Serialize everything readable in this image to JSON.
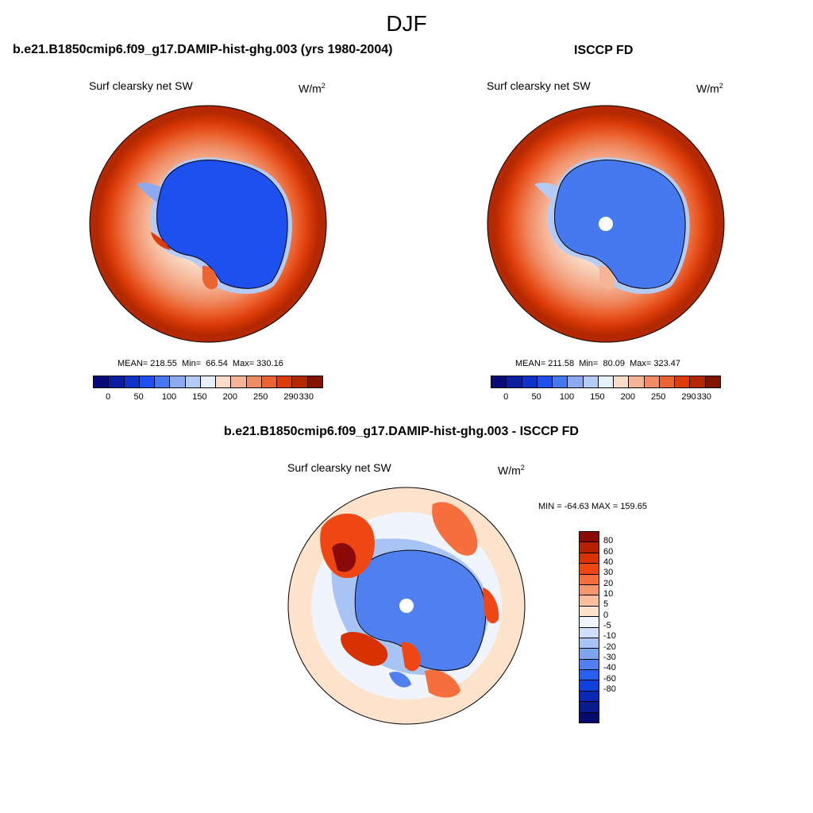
{
  "page": {
    "title": "DJF"
  },
  "panels": {
    "model": {
      "title": "b.e21.B1850cmip6.f09_g17.DAMIP-hist-ghg.003 (yrs 1980-2004)",
      "variable": "Surf clearsky net SW",
      "units": "W/m",
      "units_exp": "2",
      "stats": "MEAN= 218.55  Min=  66.54  Max= 330.16",
      "mean": 218.55,
      "min": 66.54,
      "max": 330.16
    },
    "obs": {
      "title": "ISCCP FD",
      "variable": "Surf clearsky net SW",
      "units": "W/m",
      "units_exp": "2",
      "stats": "MEAN= 211.58  Min=  80.09  Max= 323.47",
      "mean": 211.58,
      "min": 80.09,
      "max": 323.47
    },
    "diff": {
      "title": "b.e21.B1850cmip6.f09_g17.DAMIP-hist-ghg.003 - ISCCP FD",
      "variable": "Surf clearsky net SW",
      "units": "W/m",
      "units_exp": "2",
      "stats": "MIN = -64.63 MAX = 159.65",
      "min": -64.63,
      "max": 159.65
    }
  },
  "colorbars": {
    "abs": {
      "colors": [
        "#0a0a78",
        "#0c1ea0",
        "#0f32c8",
        "#1e50f0",
        "#4678f0",
        "#8caaf0",
        "#b4ccf5",
        "#e6f0fa",
        "#fadcc8",
        "#f5b496",
        "#f08c64",
        "#eb6432",
        "#dc3c0a",
        "#b42800",
        "#821400"
      ],
      "tick_labels": [
        "0",
        "50",
        "100",
        "150",
        "200",
        "250",
        "290",
        "330"
      ]
    },
    "diff": {
      "colors": [
        "#8b0a0a",
        "#b42000",
        "#d73200",
        "#f04614",
        "#f56e3c",
        "#f8966e",
        "#fbbe9e",
        "#fde2cc",
        "#f0f4fc",
        "#cde0f8",
        "#a8c4f5",
        "#7ea4f0",
        "#5080f0",
        "#2a5ef0",
        "#1040dc",
        "#0a28b4",
        "#081e8c",
        "#050a6e"
      ],
      "tick_labels": [
        "80",
        "60",
        "40",
        "30",
        "20",
        "10",
        "5",
        "0",
        "-5",
        "-10",
        "-20",
        "-30",
        "-40",
        "-60",
        "-80"
      ]
    }
  }
}
